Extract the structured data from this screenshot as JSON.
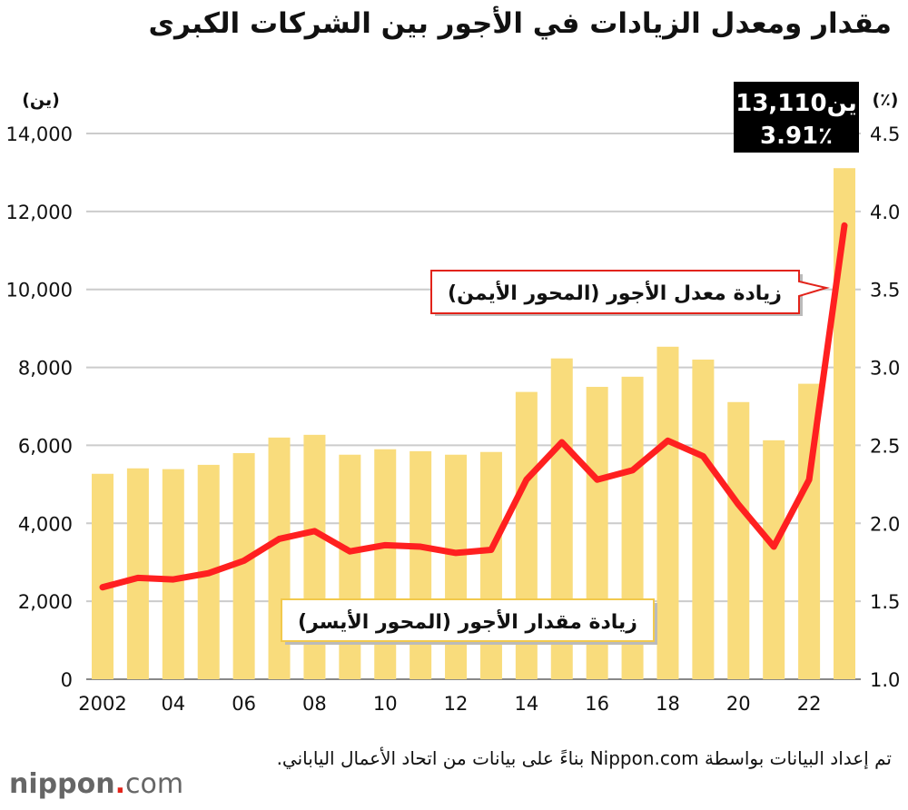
{
  "title": "مقدار ومعدل الزيادات في الأجور بين الشركات الكبرى",
  "source": "تم إعداد البيانات بواسطة Nippon.com بناءً على بيانات من اتحاد الأعمال الياباني.",
  "logo": {
    "name": "nippon",
    "dot": ".",
    "com": "com"
  },
  "chart_data": {
    "type": "bar+line",
    "title": "مقدار ومعدل الزيادات في الأجور بين الشركات الكبرى",
    "x": [
      2002,
      2003,
      2004,
      2005,
      2006,
      2007,
      2008,
      2009,
      2010,
      2011,
      2012,
      2013,
      2014,
      2015,
      2016,
      2017,
      2018,
      2019,
      2020,
      2021,
      2022,
      2023
    ],
    "xtick_labels": [
      "2002",
      "04",
      "06",
      "08",
      "10",
      "12",
      "14",
      "16",
      "18",
      "20",
      "22"
    ],
    "left_axis": {
      "label": "(ين)",
      "ylim": [
        0,
        14000
      ],
      "ticks": [
        "0",
        "2,000",
        "4,000",
        "6,000",
        "8,000",
        "10,000",
        "12,000",
        "14,000"
      ]
    },
    "right_axis": {
      "label": "(٪)",
      "ylim": [
        1.0,
        4.5
      ],
      "ticks": [
        "1.0",
        "1.5",
        "2.0",
        "2.5",
        "3.0",
        "3.5",
        "4.0",
        "4.5"
      ]
    },
    "series": [
      {
        "name": "زيادة مقدار الأجور (المحور الأيسر)",
        "type": "bar",
        "axis": "left",
        "color": "#f9dc7c",
        "values": [
          5270,
          5410,
          5390,
          5500,
          5800,
          6200,
          6270,
          5760,
          5900,
          5850,
          5760,
          5830,
          7370,
          8230,
          7500,
          7760,
          8530,
          8200,
          7110,
          6130,
          7580,
          13110
        ]
      },
      {
        "name": "زيادة معدل الأجور (المحور الأيمن)",
        "type": "line",
        "axis": "right",
        "color": "#ff2020",
        "values": [
          1.59,
          1.65,
          1.64,
          1.68,
          1.76,
          1.9,
          1.95,
          1.82,
          1.86,
          1.85,
          1.81,
          1.83,
          2.28,
          2.52,
          2.28,
          2.34,
          2.53,
          2.43,
          2.12,
          1.85,
          2.28,
          3.91
        ]
      }
    ],
    "annotation": {
      "line1": "13,110ين",
      "line2": "3.91٪"
    }
  }
}
